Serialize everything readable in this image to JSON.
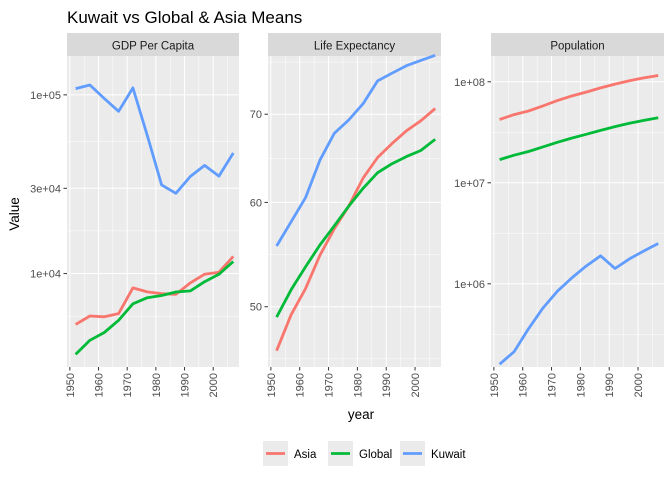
{
  "chart_data": {
    "type": "line",
    "title": "Kuwait vs Global & Asia Means",
    "xlabel": "year",
    "ylabel": "Value",
    "x": [
      1952,
      1957,
      1962,
      1967,
      1972,
      1977,
      1982,
      1987,
      1992,
      1997,
      2002,
      2007
    ],
    "x_ticks": [
      1950,
      1960,
      1970,
      1980,
      1990,
      2000
    ],
    "x_tick_labels": [
      "1950",
      "1960",
      "1970",
      "1980",
      "1990",
      "2000"
    ],
    "x_lim": [
      1949,
      2009
    ],
    "y_scale": "log",
    "grid": true,
    "legend_position": "bottom",
    "legend": [
      {
        "name": "Asia",
        "color": "#F8766D"
      },
      {
        "name": "Global",
        "color": "#00BA38"
      },
      {
        "name": "Kuwait",
        "color": "#619CFF"
      }
    ],
    "panels": [
      {
        "strip": "GDP Per Capita",
        "y_lim": [
          3000,
          165000
        ],
        "y_ticks": [
          10000,
          30000,
          100000
        ],
        "y_tick_labels": [
          "1e+04",
          "3e+04",
          "1e+05"
        ],
        "series": [
          {
            "name": "Asia",
            "values": [
              5195,
              5788,
              5729,
              5972,
              8315,
              7897,
              7716,
              7652,
              8871,
              9916,
              10174,
              12473
            ]
          },
          {
            "name": "Global",
            "values": [
              3529,
              4231,
              4681,
              5475,
              6771,
              7324,
              7536,
              7883,
              8000,
              9007,
              9902,
              11680
            ]
          },
          {
            "name": "Kuwait",
            "values": [
              108382,
              113523,
              95458,
              80895,
              109348,
              59265,
              31354,
              28118,
              34933,
              40301,
              35110,
              47307
            ]
          }
        ]
      },
      {
        "strip": "Life Expectancy",
        "y_lim": [
          45,
          77.5
        ],
        "y_ticks": [
          50,
          60,
          70
        ],
        "y_tick_labels": [
          "50",
          "60",
          "70"
        ],
        "series": [
          {
            "name": "Asia",
            "values": [
              46.3,
              49.3,
              51.6,
              54.7,
              57.3,
              59.6,
              62.6,
              64.9,
              66.5,
              68.0,
              69.2,
              70.7
            ]
          },
          {
            "name": "Global",
            "values": [
              49.1,
              51.5,
              53.6,
              55.7,
              57.6,
              59.6,
              61.5,
              63.2,
              64.2,
              65.0,
              65.7,
              67.0
            ]
          },
          {
            "name": "Kuwait",
            "values": [
              55.6,
              58.0,
              60.5,
              64.6,
              67.7,
              69.3,
              71.3,
              74.2,
              75.2,
              76.2,
              76.9,
              77.6
            ]
          }
        ]
      },
      {
        "strip": "Population",
        "y_lim": [
          150000,
          180000000
        ],
        "y_ticks": [
          1000000,
          10000000,
          100000000
        ],
        "y_tick_labels": [
          "1e+06",
          "1e+07",
          "1e+08"
        ],
        "series": [
          {
            "name": "Asia",
            "values": [
              42283556,
              47356988,
              51404763,
              57747361,
              65180977,
              72257987,
              79095018,
              87006690,
              94948248,
              102523803,
              109145521,
              115513752
            ]
          },
          {
            "name": "Global",
            "values": [
              16950402,
              18763413,
              20421007,
              22658298,
              25189980,
              27676379,
              30207302,
              33038573,
              35990917,
              38839468,
              41457589,
              44021220
            ]
          },
          {
            "name": "Kuwait",
            "values": [
              160000,
              212846,
              358266,
              575003,
              841934,
              1140357,
              1497494,
              1891487,
              1418095,
              1765345,
              2111561,
              2505559
            ]
          }
        ]
      }
    ]
  }
}
